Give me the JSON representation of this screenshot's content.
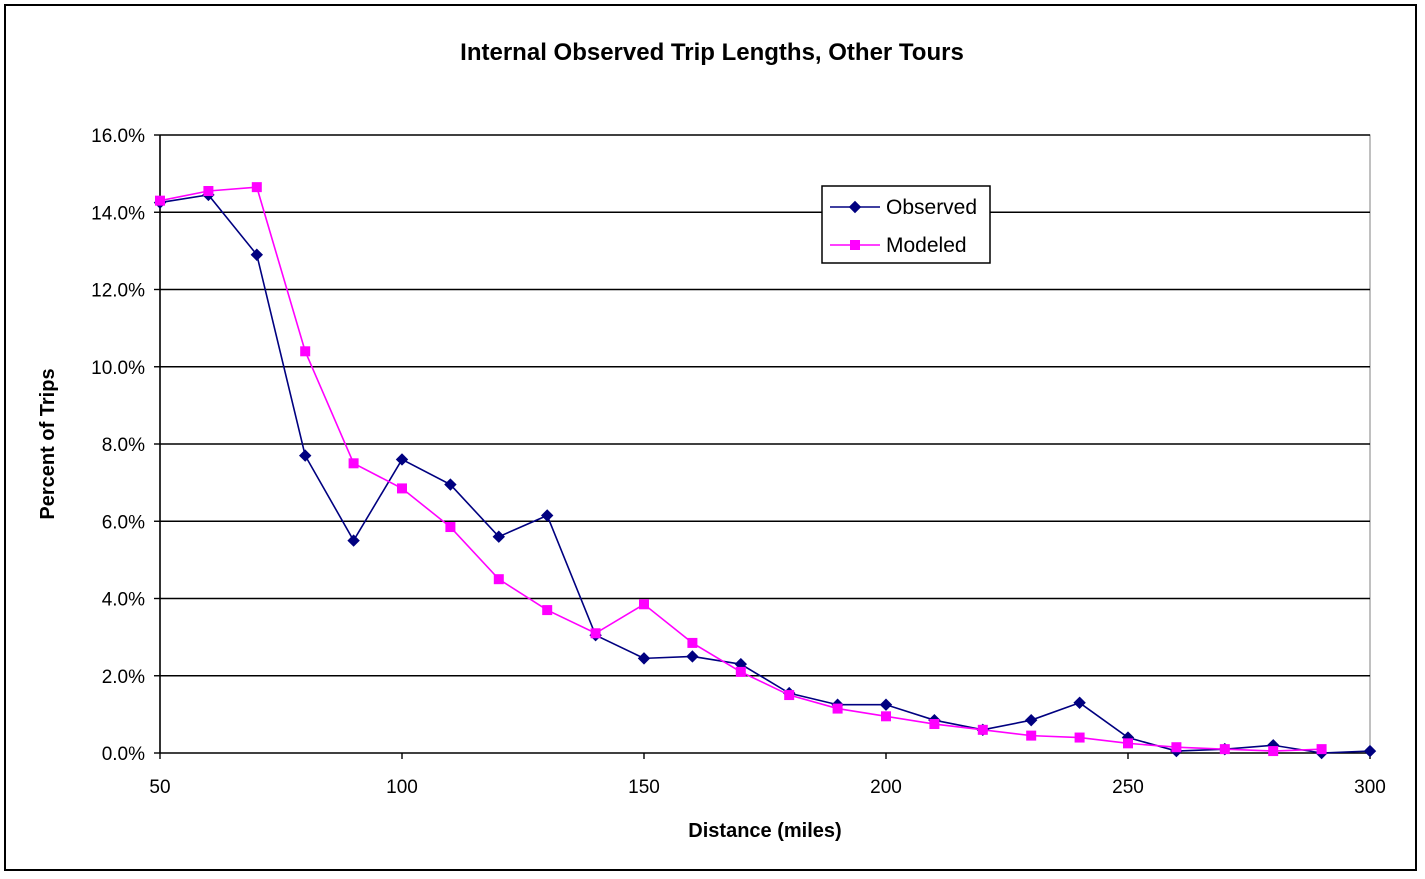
{
  "chart_data": {
    "type": "line",
    "title": "Internal Observed Trip Lengths, Other Tours",
    "xlabel": "Distance (miles)",
    "ylabel": "Percent of Trips",
    "xlim": [
      50,
      300
    ],
    "ylim": [
      0,
      16
    ],
    "x_ticks": [
      "50",
      "100",
      "150",
      "200",
      "250",
      "300"
    ],
    "x_tick_values": [
      50,
      100,
      150,
      200,
      250,
      300
    ],
    "y_ticks": [
      "0.0%",
      "2.0%",
      "4.0%",
      "6.0%",
      "8.0%",
      "10.0%",
      "12.0%",
      "14.0%",
      "16.0%"
    ],
    "y_tick_values": [
      0,
      2,
      4,
      6,
      8,
      10,
      12,
      14,
      16
    ],
    "grid": "horizontal",
    "legend_position": "top-right",
    "series": [
      {
        "name": "Observed",
        "color": "#000080",
        "marker": "diamond",
        "x": [
          50,
          60,
          70,
          80,
          90,
          100,
          110,
          120,
          130,
          140,
          150,
          160,
          170,
          180,
          190,
          200,
          210,
          220,
          230,
          240,
          250,
          260,
          270,
          280,
          290,
          300
        ],
        "values": [
          14.25,
          14.45,
          12.9,
          7.7,
          5.5,
          7.6,
          6.95,
          5.6,
          6.15,
          3.05,
          2.45,
          2.5,
          2.3,
          1.55,
          1.25,
          1.25,
          0.85,
          0.6,
          0.85,
          1.3,
          0.4,
          0.05,
          0.1,
          0.2,
          0.0,
          0.05
        ]
      },
      {
        "name": "Modeled",
        "color": "#FF00FF",
        "marker": "square",
        "x": [
          50,
          60,
          70,
          80,
          90,
          100,
          110,
          120,
          130,
          140,
          150,
          160,
          170,
          180,
          190,
          200,
          210,
          220,
          230,
          240,
          250,
          260,
          270,
          280,
          290
        ],
        "values": [
          14.3,
          14.55,
          14.65,
          10.4,
          7.5,
          6.85,
          5.85,
          4.5,
          3.7,
          3.1,
          3.85,
          2.85,
          2.1,
          1.5,
          1.15,
          0.95,
          0.75,
          0.6,
          0.45,
          0.4,
          0.25,
          0.15,
          0.1,
          0.05,
          0.1
        ]
      }
    ]
  }
}
